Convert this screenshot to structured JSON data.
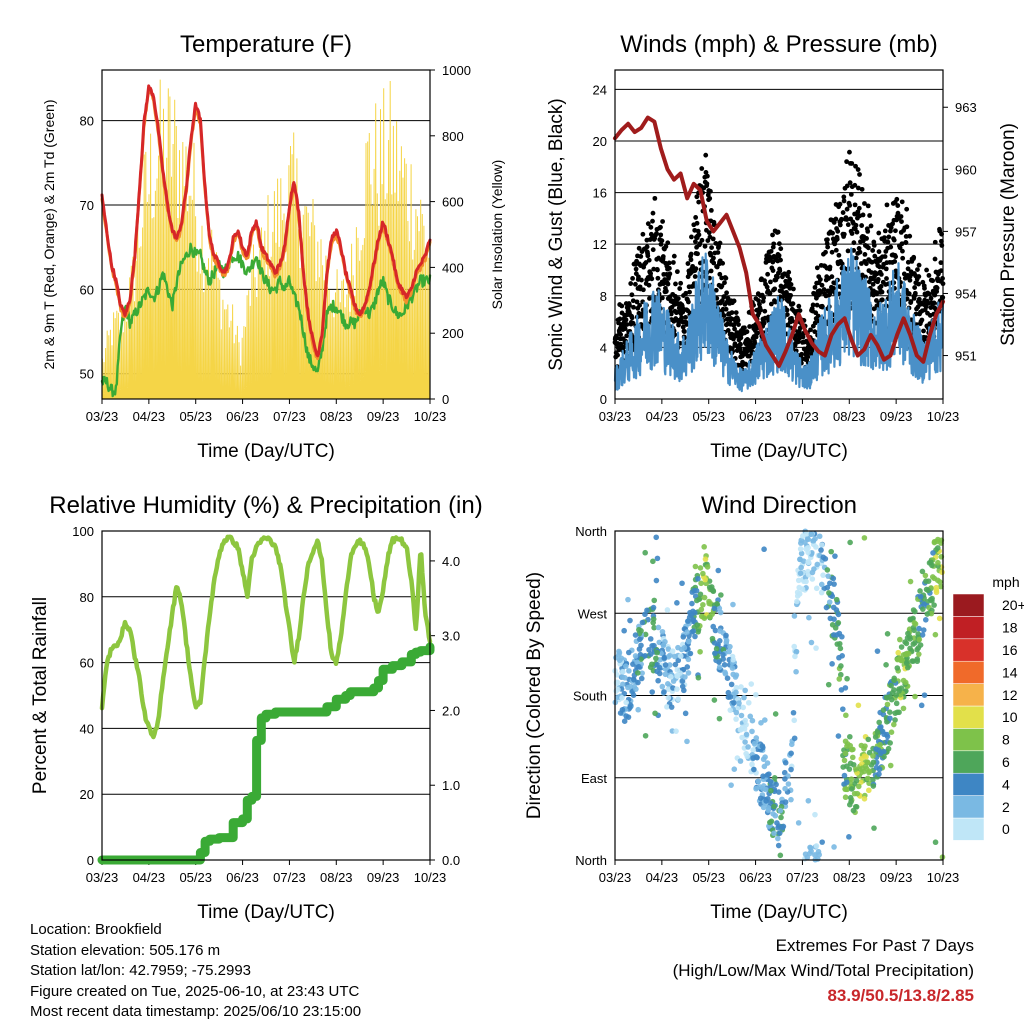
{
  "x_ticks": [
    "03/23",
    "04/23",
    "05/23",
    "06/23",
    "07/23",
    "08/23",
    "09/23",
    "10/23"
  ],
  "x_label": "Time (Day/UTC)",
  "info": {
    "location": "Location: Brookfield",
    "elevation": "Station elevation: 505.176 m",
    "latlon": "Station lat/lon: 42.7959; -75.2993",
    "created": "Figure created on Tue, 2025-06-10, at 23:43 UTC",
    "recent": "Most recent data timestamp: 2025/06/10 23:15:00"
  },
  "extremes": {
    "title": "Extremes For Past 7 Days",
    "subtitle": "(High/Low/Max Wind/Total Precipitation)",
    "values": "83.9/50.5/13.8/2.85"
  },
  "colorbar": {
    "title": "mph",
    "levels": [
      "0",
      "2",
      "4",
      "6",
      "8",
      "10",
      "12",
      "14",
      "16",
      "18",
      "20+"
    ],
    "colors": [
      "#bfe6f7",
      "#7ab9e3",
      "#3e86c4",
      "#4ea65a",
      "#7ec24a",
      "#e2e04a",
      "#f6b24a",
      "#f06a2a",
      "#d8312a",
      "#c01f24",
      "#9b1a1f"
    ]
  },
  "chart_data": [
    {
      "type": "line",
      "title": "Temperature (F)",
      "xlabel": "Time (Day/UTC)",
      "ylabel": "2m & 9m T (Red, Orange) & 2m Td (Green)",
      "y2label": "Solar Insolation (Yellow)",
      "x_ticks": [
        "03/23",
        "04/23",
        "05/23",
        "06/23",
        "07/23",
        "08/23",
        "09/23",
        "10/23"
      ],
      "ylim": [
        47,
        86
      ],
      "yticks": [
        50,
        60,
        70,
        80
      ],
      "y2lim": [
        0,
        1000
      ],
      "y2ticks": [
        0,
        200,
        400,
        600,
        800,
        1000
      ],
      "colors": {
        "temp2m": "#d62728",
        "temp9m": "#f28e2b",
        "dewpoint": "#3aaa35",
        "solar": "#f5d547"
      },
      "series": [
        {
          "name": "2m T",
          "x": [
            0,
            1,
            2,
            3,
            4,
            5,
            6,
            7,
            8,
            9,
            10,
            11,
            12,
            13,
            14,
            15,
            16,
            17,
            18,
            19,
            20,
            21,
            22,
            23,
            24,
            25,
            26,
            27,
            28,
            29,
            30,
            31,
            32,
            33,
            34,
            35,
            36,
            37,
            38,
            39,
            40,
            41,
            42,
            43,
            44,
            45,
            46,
            47,
            48,
            49,
            50,
            51,
            52,
            53,
            54,
            55,
            56,
            57,
            58,
            59,
            60,
            61,
            62,
            63,
            64,
            65,
            66,
            67,
            68,
            69,
            70
          ],
          "values": [
            71,
            67,
            63,
            61,
            58,
            57,
            59,
            64,
            72,
            80,
            84,
            83,
            79,
            74,
            70,
            67,
            66,
            68,
            72,
            78,
            82,
            80,
            72,
            66,
            64,
            63,
            62,
            63,
            66,
            67,
            65,
            64,
            67,
            68,
            65,
            64,
            63,
            62,
            63,
            65,
            70,
            73,
            69,
            62,
            57,
            54,
            52,
            55,
            62,
            66,
            67,
            65,
            62,
            60,
            58,
            57,
            58,
            60,
            63,
            66,
            68,
            66,
            64,
            61,
            60,
            59,
            60,
            62,
            63,
            64,
            66
          ]
        },
        {
          "name": "2m Td",
          "x": [
            0,
            1,
            2,
            3,
            4,
            5,
            6,
            7,
            8,
            9,
            10,
            11,
            12,
            13,
            14,
            15,
            16,
            17,
            18,
            19,
            20,
            21,
            22,
            23,
            24,
            25,
            26,
            27,
            28,
            29,
            30,
            31,
            32,
            33,
            34,
            35,
            36,
            37,
            38,
            39,
            40,
            41,
            42,
            43,
            44,
            45,
            46,
            47,
            48,
            49,
            50,
            51,
            52,
            53,
            54,
            55,
            56,
            57,
            58,
            59,
            60,
            61,
            62,
            63,
            64,
            65,
            66,
            67,
            68,
            69,
            70
          ],
          "values": [
            49,
            49,
            48,
            48,
            55,
            58,
            56,
            57,
            58,
            59,
            60,
            59,
            60,
            62,
            60,
            58,
            61,
            63,
            64,
            65,
            64,
            64,
            62,
            61,
            62,
            63,
            62,
            63,
            64,
            64,
            63,
            62,
            63,
            64,
            62,
            61,
            60,
            60,
            61,
            60,
            61,
            59,
            58,
            55,
            52,
            51,
            50,
            53,
            57,
            58,
            58,
            57,
            56,
            56,
            56,
            57,
            58,
            57,
            58,
            60,
            61,
            59,
            58,
            57,
            57,
            58,
            59,
            60,
            61,
            61,
            61
          ]
        },
        {
          "name": "Solar",
          "type": "solar_daily",
          "peak_values": [
            140,
            260,
            300,
            420,
            700,
            860,
            950,
            960,
            880,
            820,
            600,
            550,
            380,
            300,
            180,
            420,
            520,
            640,
            700,
            800,
            720,
            620,
            560,
            440,
            360,
            420,
            700,
            900,
            880,
            940,
            860,
            780,
            700,
            560
          ]
        }
      ]
    },
    {
      "type": "scatter",
      "title": "Winds (mph) & Pressure (mb)",
      "xlabel": "Time (Day/UTC)",
      "ylabel": "Sonic Wind & Gust (Blue, Black)",
      "y2label": "Station Pressure (Maroon)",
      "x_ticks": [
        "03/23",
        "04/23",
        "05/23",
        "06/23",
        "07/23",
        "08/23",
        "09/23",
        "10/23"
      ],
      "ylim": [
        0,
        25.5
      ],
      "yticks": [
        0,
        4,
        8,
        12,
        16,
        20,
        24
      ],
      "y2lim": [
        948.9,
        964.8
      ],
      "y2ticks": [
        951,
        954,
        957,
        960,
        963
      ],
      "colors": {
        "wind": "#4a90c8",
        "gust": "#000000",
        "pressure": "#a01c1c"
      },
      "wind_envelope": [
        2,
        3,
        4,
        5,
        6,
        7,
        8,
        7,
        6,
        5,
        4,
        5,
        7,
        9,
        10,
        8,
        6,
        4,
        3,
        2,
        2,
        3,
        4,
        5,
        6,
        7,
        6,
        4,
        3,
        2,
        3,
        5,
        6,
        7,
        8,
        9,
        10,
        9,
        8,
        7,
        6,
        7,
        8,
        9,
        8,
        6,
        5,
        4,
        5,
        6,
        7
      ],
      "pressure": {
        "x": [
          0,
          1,
          2,
          3,
          4,
          5,
          6,
          7,
          8,
          9,
          10,
          11,
          12,
          13,
          14,
          15,
          16,
          17,
          18,
          19,
          20,
          21,
          22,
          23,
          24,
          25,
          26,
          27,
          28,
          29,
          30,
          31,
          32,
          33,
          34,
          35,
          36,
          37,
          38,
          39,
          40,
          41,
          42,
          43,
          44,
          45,
          46,
          47,
          48,
          49,
          50
        ],
        "values": [
          961.5,
          961.9,
          962.2,
          961.8,
          962.0,
          962.5,
          962.3,
          961.0,
          960.0,
          959.5,
          959.8,
          958.6,
          959.3,
          959.0,
          957.5,
          957.0,
          957.4,
          957.8,
          957.0,
          956.2,
          955.0,
          953.0,
          952.5,
          951.5,
          951.0,
          950.5,
          951.2,
          952.0,
          953.0,
          952.2,
          951.6,
          951.2,
          951.0,
          952.0,
          952.5,
          952.8,
          951.8,
          951.0,
          951.3,
          952.0,
          951.5,
          950.8,
          951.0,
          952.0,
          952.8,
          952.0,
          951.0,
          950.7,
          952.0,
          953.0,
          953.6
        ]
      }
    },
    {
      "type": "line",
      "title": "Relative Humidity (%) & Precipitation (in)",
      "xlabel": "Time (Day/UTC)",
      "ylabel": "Percent & Total Rainfall",
      "x_ticks": [
        "03/23",
        "04/23",
        "05/23",
        "06/23",
        "07/23",
        "08/23",
        "09/23",
        "10/23"
      ],
      "ylim": [
        0,
        100
      ],
      "yticks": [
        0,
        20,
        40,
        60,
        80,
        100
      ],
      "y2lim": [
        0,
        4.4
      ],
      "y2ticks": [
        0.0,
        1.0,
        2.0,
        3.0,
        4.0
      ],
      "colors": {
        "rh": "#8dc63f",
        "precip": "#3aaa35"
      },
      "series": [
        {
          "name": "RH",
          "x": [
            0,
            1,
            2,
            3,
            4,
            5,
            6,
            7,
            8,
            9,
            10,
            11,
            12,
            13,
            14,
            15,
            16,
            17,
            18,
            19,
            20,
            21,
            22,
            23,
            24,
            25,
            26,
            27,
            28,
            29,
            30,
            31,
            32,
            33,
            34,
            35,
            36,
            37,
            38,
            39,
            40,
            41,
            42,
            43,
            44,
            45,
            46,
            47,
            48,
            49,
            50,
            51,
            52,
            53,
            54,
            55,
            56,
            57,
            58,
            59,
            60,
            61,
            62,
            63,
            64,
            65,
            66,
            67,
            68,
            69,
            70
          ],
          "values": [
            46,
            60,
            64,
            65,
            68,
            72,
            70,
            62,
            55,
            45,
            40,
            37,
            42,
            55,
            65,
            75,
            84,
            78,
            66,
            55,
            46,
            48,
            62,
            75,
            85,
            93,
            97,
            98,
            97,
            95,
            88,
            80,
            92,
            95,
            97,
            98,
            97,
            95,
            90,
            80,
            70,
            60,
            68,
            80,
            90,
            94,
            97,
            90,
            75,
            62,
            60,
            68,
            80,
            92,
            96,
            97,
            95,
            90,
            80,
            75,
            82,
            92,
            97,
            98,
            97,
            95,
            85,
            70,
            95,
            75,
            66
          ]
        },
        {
          "name": "Precip",
          "x": [
            0,
            20,
            21,
            22,
            23,
            25,
            27,
            28,
            30,
            31,
            32,
            33,
            34,
            35,
            36,
            37,
            40,
            43,
            45,
            47,
            48,
            50,
            52,
            53,
            55,
            57,
            58,
            59,
            60,
            62,
            64,
            65,
            66,
            67,
            68,
            70
          ],
          "values": [
            0,
            0,
            0.1,
            0.25,
            0.28,
            0.3,
            0.3,
            0.5,
            0.55,
            0.8,
            0.85,
            1.6,
            1.9,
            1.95,
            1.95,
            1.98,
            1.98,
            1.98,
            1.98,
            1.98,
            2.05,
            2.15,
            2.2,
            2.25,
            2.25,
            2.25,
            2.3,
            2.4,
            2.55,
            2.6,
            2.65,
            2.65,
            2.75,
            2.78,
            2.8,
            2.85
          ]
        }
      ]
    },
    {
      "type": "scatter",
      "title": "Wind Direction",
      "xlabel": "Time (Day/UTC)",
      "ylabel": "Direction (Colored By Speed)",
      "x_ticks": [
        "03/23",
        "04/23",
        "05/23",
        "06/23",
        "07/23",
        "08/23",
        "09/23",
        "10/23"
      ],
      "ylim": [
        0,
        360
      ],
      "ytick_labels": [
        "North",
        "East",
        "South",
        "West",
        "North"
      ],
      "ytick_values": [
        0,
        90,
        180,
        270,
        360
      ],
      "direction_track": [
        200,
        190,
        180,
        210,
        230,
        250,
        240,
        220,
        200,
        200,
        210,
        230,
        270,
        290,
        300,
        260,
        240,
        210,
        190,
        170,
        150,
        120,
        100,
        80,
        60,
        50,
        80,
        110,
        320,
        330,
        340,
        350,
        300,
        280,
        260,
        100,
        90,
        85,
        100,
        110,
        120,
        140,
        160,
        190,
        210,
        230,
        250,
        270,
        300,
        320,
        330
      ],
      "speed_track": [
        2,
        3,
        4,
        4,
        5,
        6,
        6,
        4,
        3,
        3,
        3,
        4,
        6,
        8,
        9,
        7,
        5,
        4,
        3,
        2,
        2,
        3,
        4,
        4,
        5,
        6,
        4,
        3,
        2,
        2,
        2,
        3,
        4,
        5,
        6,
        7,
        8,
        9,
        10,
        8,
        7,
        6,
        7,
        8,
        9,
        8,
        7,
        6,
        7,
        9,
        10
      ]
    }
  ]
}
